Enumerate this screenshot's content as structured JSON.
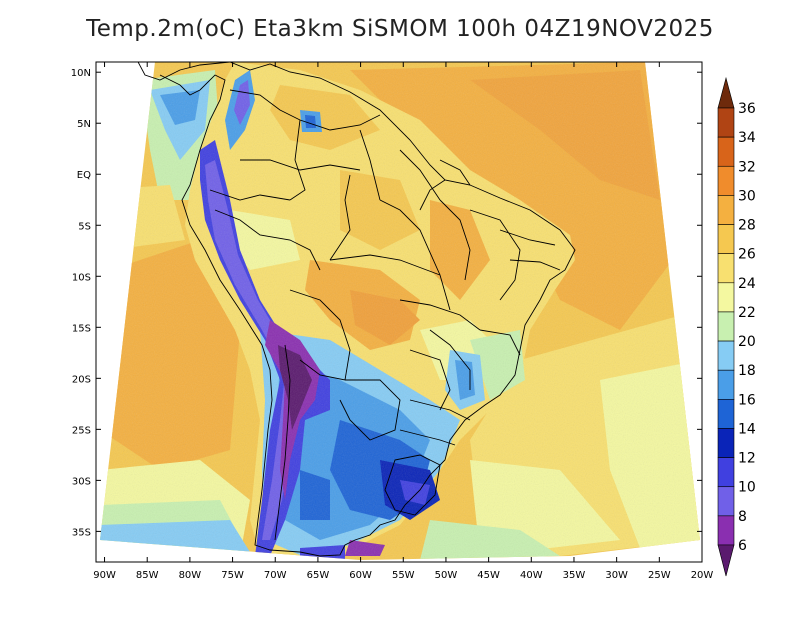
{
  "title": "Temp.2m(oC) Eta3km SiSMOM 100h 04Z19NOV2025",
  "map": {
    "lat_labels": [
      "10N",
      "5N",
      "EQ",
      "5S",
      "10S",
      "15S",
      "20S",
      "25S",
      "30S",
      "35S"
    ],
    "lon_labels": [
      "90W",
      "85W",
      "80W",
      "75W",
      "70W",
      "65W",
      "60W",
      "55W",
      "50W",
      "45W",
      "40W",
      "35W",
      "30W",
      "25W",
      "20W"
    ],
    "lat_values": [
      10,
      5,
      0,
      -5,
      -10,
      -15,
      -20,
      -25,
      -30,
      -35
    ],
    "lon_values": [
      -90,
      -85,
      -80,
      -75,
      -70,
      -65,
      -60,
      -55,
      -50,
      -45,
      -40,
      -35,
      -30,
      -25,
      -20
    ],
    "lat_range": [
      -38,
      11
    ],
    "lon_range": [
      -91,
      -20
    ]
  },
  "colorbar": {
    "labels": [
      "36",
      "34",
      "32",
      "30",
      "28",
      "26",
      "24",
      "22",
      "20",
      "18",
      "16",
      "14",
      "12",
      "10",
      "8",
      "6"
    ],
    "min": 6,
    "max": 36,
    "step": 2,
    "unit": "oC",
    "colors": [
      "#5a1a6e",
      "#8a2fb0",
      "#7060e8",
      "#4040e0",
      "#0a24b8",
      "#1e64d6",
      "#4a9ee8",
      "#86ccf4",
      "#c8f0b0",
      "#f4f8a0",
      "#f8e070",
      "#f5c850",
      "#f4b040",
      "#f08c2c",
      "#d8641a",
      "#b04414",
      "#6e2a0c"
    ]
  }
}
